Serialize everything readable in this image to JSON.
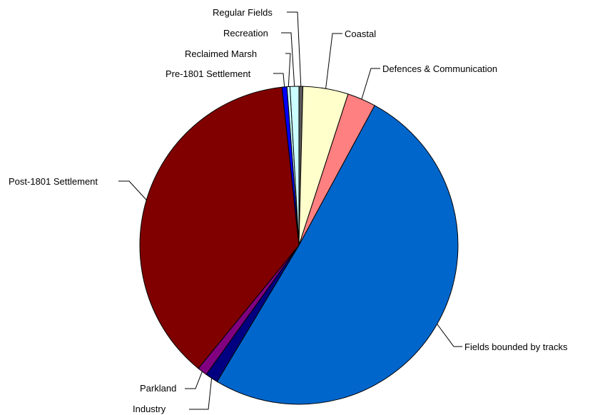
{
  "chart_data": {
    "type": "pie",
    "slices": [
      {
        "label": "Regular Fields",
        "value": 0.4,
        "color": "#5a5a5a"
      },
      {
        "label": "Coastal",
        "value": 4.6,
        "color": "#ffffcc"
      },
      {
        "label": "Defences & Communication",
        "value": 2.9,
        "color": "#ff8080"
      },
      {
        "label": "Fields bounded by tracks",
        "value": 50.7,
        "color": "#0066cc"
      },
      {
        "label": "Industry",
        "value": 1.3,
        "color": "#000080"
      },
      {
        "label": "Parkland",
        "value": 1.0,
        "color": "#800080"
      },
      {
        "label": "Post-1801 Settlement",
        "value": 37.4,
        "color": "#800000"
      },
      {
        "label": "Pre-1801 Settlement",
        "value": 0.5,
        "color": "#0000ff"
      },
      {
        "label": "Reclaimed Marsh",
        "value": 0.3,
        "color": "#ccffff"
      },
      {
        "label": "Recreation",
        "value": 0.9,
        "color": "#ccffff"
      }
    ],
    "legend": "none (leader-line labels)"
  }
}
